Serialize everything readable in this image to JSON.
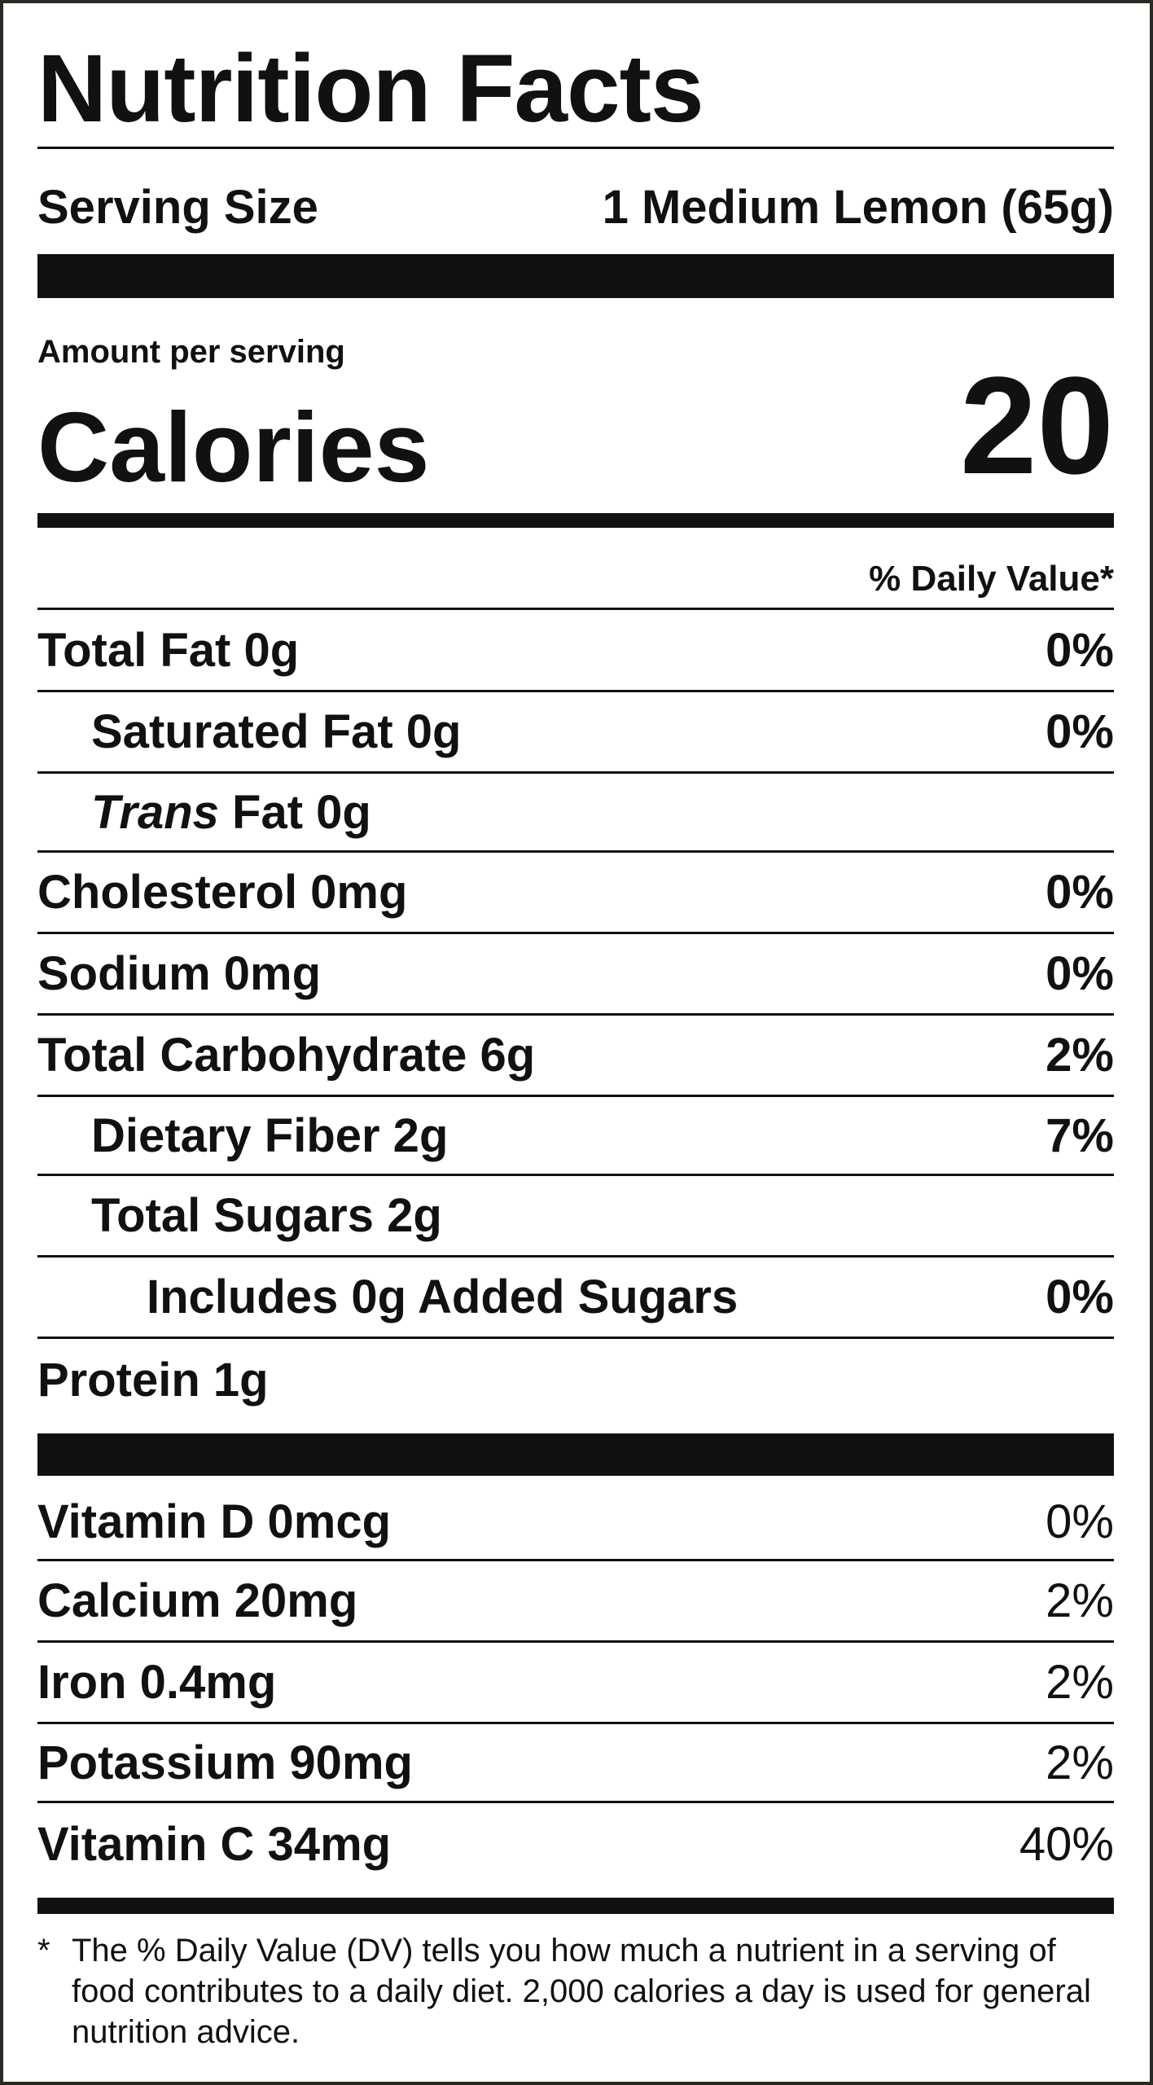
{
  "title": "Nutrition Facts",
  "serving": {
    "label": "Serving Size",
    "value": "1 Medium Lemon (65g)"
  },
  "amount_per_serving": "Amount per serving",
  "calories": {
    "label": "Calories",
    "value": "20"
  },
  "daily_value_header": "% Daily Value*",
  "nutrients": [
    {
      "name": "Total Fat 0g",
      "percent": "0%"
    },
    {
      "name": "Saturated Fat 0g",
      "percent": "0%"
    },
    {
      "name_italic": "Trans",
      "name_rest": " Fat 0g",
      "percent": ""
    },
    {
      "name": "Cholesterol 0mg",
      "percent": "0%"
    },
    {
      "name": "Sodium 0mg",
      "percent": "0%"
    },
    {
      "name": "Total Carbohydrate 6g",
      "percent": "2%"
    },
    {
      "name": "Dietary Fiber 2g",
      "percent": "7%"
    },
    {
      "name": "Total Sugars 2g",
      "percent": ""
    },
    {
      "name": "Includes 0g Added Sugars",
      "percent": "0%"
    },
    {
      "name": "Protein 1g",
      "percent": ""
    }
  ],
  "vitamins": [
    {
      "name": "Vitamin D 0mcg",
      "percent": "0%"
    },
    {
      "name": "Calcium 20mg",
      "percent": "2%"
    },
    {
      "name": "Iron 0.4mg",
      "percent": "2%"
    },
    {
      "name": "Potassium 90mg",
      "percent": "2%"
    },
    {
      "name": "Vitamin C 34mg",
      "percent": "40%"
    }
  ],
  "footnote": {
    "star": "*",
    "text": "The % Daily Value (DV) tells you how much a nutrient in a serving of food contributes to a daily diet. 2,000 calories a day is used for general nutrition advice."
  }
}
